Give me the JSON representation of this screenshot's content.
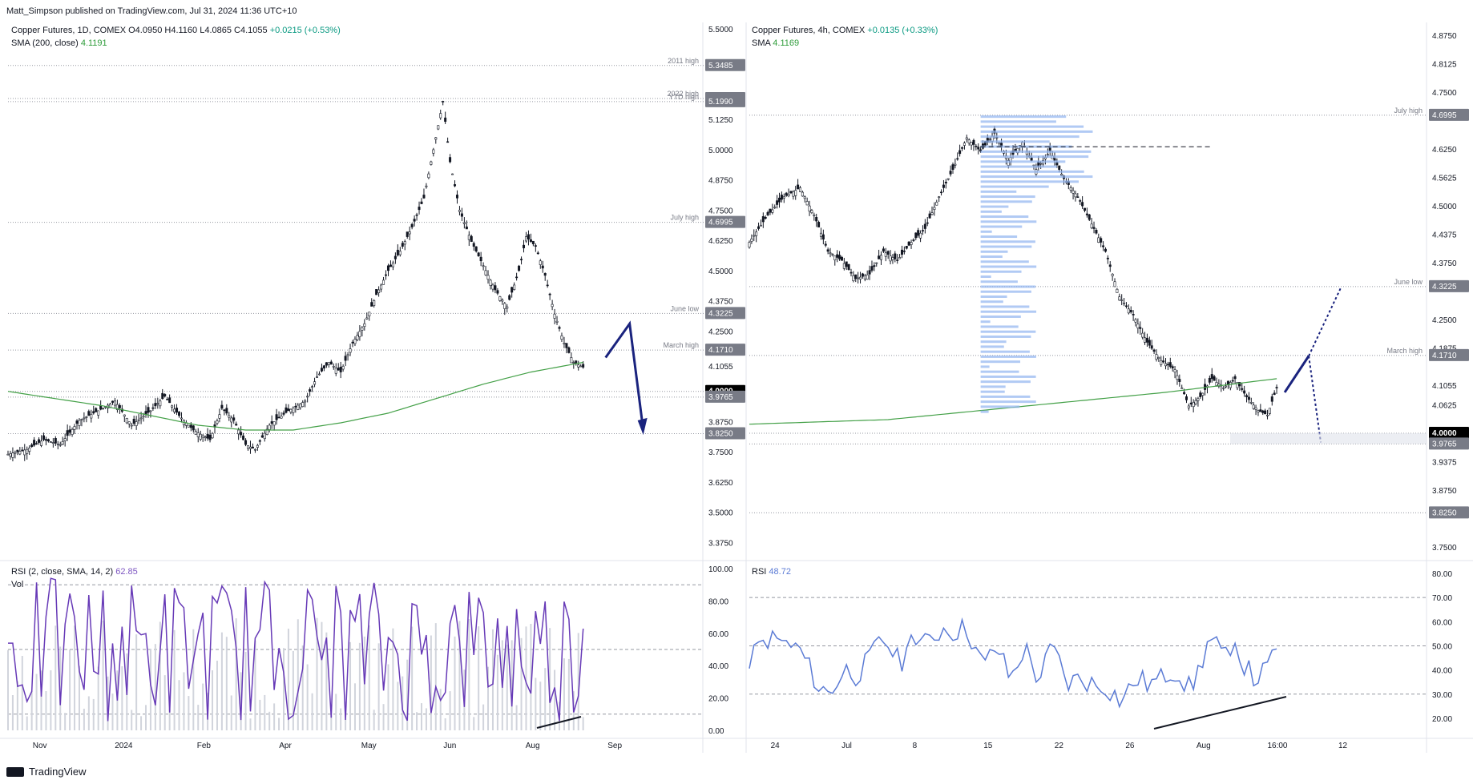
{
  "header": {
    "publisher": "Matt_Simpson published on TradingView.com, Jul 31, 2024 11:36 UTC+10"
  },
  "footer": {
    "brand": "TradingView"
  },
  "colors": {
    "candle": "#131722",
    "sma": "#43a047",
    "rsi_left": "#673ab7",
    "rsi_right": "#5b7bd5",
    "arrow": "#1a237e",
    "profile": "#90b4f0",
    "price_badge": "#787b86",
    "current_badge": "#000000"
  },
  "left": {
    "legend_title": "Copper Futures, 1D, COMEX",
    "legend_ohlc": "O4.0950  H4.1160  L4.0865  C4.1055",
    "legend_change": "+0.0215 (+0.53%)",
    "legend_sma_name": "SMA (200, close)",
    "legend_sma_value": "4.1191",
    "rsi_name": "RSI (2, close, SMA, 14, 2)",
    "rsi_value": "62.85",
    "vol_name": "Vol"
  },
  "right": {
    "legend_title": "Copper Futures, 4h, COMEX",
    "legend_change": "+0.0135 (+0.33%)",
    "legend_sma_name": "SMA",
    "legend_sma_value": "4.1169",
    "rsi_name": "RSI",
    "rsi_value": "48.72"
  },
  "chart_data": [
    {
      "type": "candlestick",
      "title": "Copper Futures, 1D, COMEX",
      "x_ticks": [
        "Nov",
        "2024",
        "Feb",
        "Apr",
        "May",
        "Jun",
        "Aug",
        "Sep"
      ],
      "y_ticks": [
        "5.5000",
        "5.1250",
        "5.0000",
        "4.8750",
        "4.7500",
        "4.6250",
        "4.5000",
        "4.3750",
        "4.2500",
        "4.1055",
        "3.8750",
        "3.7500",
        "3.6250",
        "3.5000",
        "3.3750"
      ],
      "ylim": [
        3.3,
        5.52
      ],
      "levels": [
        {
          "label": "2011 high",
          "value": "5.3485"
        },
        {
          "label": "2022 high",
          "value": "5.2120"
        },
        {
          "label": "YTD high",
          "value": "5.1990"
        },
        {
          "label": "July high",
          "value": "4.6995"
        },
        {
          "label": "June low",
          "value": "4.3225"
        },
        {
          "label": "March high",
          "value": "4.1710"
        },
        {
          "label": "",
          "value": "4.0000"
        },
        {
          "label": "",
          "value": "3.9765"
        },
        {
          "label": "",
          "value": "3.8250"
        }
      ],
      "last_price": "4.1055",
      "close_path": [
        [
          0,
          3.74
        ],
        [
          8,
          3.76
        ],
        [
          15,
          3.8
        ],
        [
          22,
          3.78
        ],
        [
          30,
          3.88
        ],
        [
          38,
          3.92
        ],
        [
          45,
          3.96
        ],
        [
          52,
          3.86
        ],
        [
          60,
          3.92
        ],
        [
          66,
          3.98
        ],
        [
          72,
          3.9
        ],
        [
          78,
          3.84
        ],
        [
          85,
          3.8
        ],
        [
          90,
          3.93
        ],
        [
          95,
          3.88
        ],
        [
          100,
          3.78
        ],
        [
          104,
          3.76
        ],
        [
          110,
          3.86
        ],
        [
          118,
          3.92
        ],
        [
          125,
          3.96
        ],
        [
          130,
          4.06
        ],
        [
          135,
          4.12
        ],
        [
          140,
          4.08
        ],
        [
          145,
          4.2
        ],
        [
          150,
          4.28
        ],
        [
          155,
          4.4
        ],
        [
          160,
          4.5
        ],
        [
          165,
          4.58
        ],
        [
          170,
          4.68
        ],
        [
          175,
          4.8
        ],
        [
          180,
          5.05
        ],
        [
          183,
          5.2
        ],
        [
          186,
          4.95
        ],
        [
          190,
          4.75
        ],
        [
          195,
          4.62
        ],
        [
          200,
          4.52
        ],
        [
          205,
          4.42
        ],
        [
          210,
          4.35
        ],
        [
          215,
          4.5
        ],
        [
          218,
          4.64
        ],
        [
          222,
          4.6
        ],
        [
          226,
          4.48
        ],
        [
          230,
          4.32
        ],
        [
          234,
          4.2
        ],
        [
          238,
          4.12
        ],
        [
          242,
          4.1
        ]
      ],
      "sma200_path": [
        [
          0,
          4.0
        ],
        [
          20,
          3.97
        ],
        [
          40,
          3.94
        ],
        [
          60,
          3.9
        ],
        [
          80,
          3.86
        ],
        [
          100,
          3.84
        ],
        [
          120,
          3.84
        ],
        [
          140,
          3.87
        ],
        [
          160,
          3.91
        ],
        [
          180,
          3.97
        ],
        [
          200,
          4.03
        ],
        [
          220,
          4.08
        ],
        [
          242,
          4.12
        ]
      ],
      "x_len": 290,
      "rsi": {
        "ylim": [
          0,
          100
        ],
        "ticks": [
          "100.00",
          "80.00",
          "60.00",
          "40.00",
          "20.00",
          "0.00"
        ],
        "levels": [
          90,
          50,
          10
        ],
        "last": 62.85
      },
      "annotation_arrows": [
        [
          [
            4.12
          ],
          [
            4.28
          ]
        ],
        [
          [
            4.28
          ],
          [
            3.83
          ]
        ]
      ]
    },
    {
      "type": "candlestick",
      "title": "Copper Futures, 4h, COMEX",
      "x_ticks": [
        "24",
        "Jul",
        "8",
        "15",
        "22",
        "26",
        "Aug",
        "16:00",
        "12"
      ],
      "y_ticks": [
        "4.8750",
        "4.8125",
        "4.7500",
        "4.6250",
        "4.5625",
        "4.5000",
        "4.4375",
        "4.3750",
        "4.2500",
        "4.1875",
        "4.1055",
        "4.0625",
        "3.9375",
        "3.8750",
        "3.7500"
      ],
      "ylim": [
        3.72,
        4.9
      ],
      "levels": [
        {
          "label": "July high",
          "value": "4.6995"
        },
        {
          "label": "June low",
          "value": "4.3225"
        },
        {
          "label": "March high",
          "value": "4.1710"
        },
        {
          "label": "",
          "value": "4.0000"
        },
        {
          "label": "",
          "value": "3.9765"
        },
        {
          "label": "",
          "value": "3.8250"
        }
      ],
      "last_price": "4.1055",
      "close_path": [
        [
          0,
          4.42
        ],
        [
          8,
          4.48
        ],
        [
          15,
          4.52
        ],
        [
          22,
          4.54
        ],
        [
          28,
          4.48
        ],
        [
          34,
          4.4
        ],
        [
          40,
          4.38
        ],
        [
          46,
          4.34
        ],
        [
          52,
          4.35
        ],
        [
          58,
          4.4
        ],
        [
          64,
          4.38
        ],
        [
          70,
          4.42
        ],
        [
          76,
          4.45
        ],
        [
          82,
          4.52
        ],
        [
          88,
          4.58
        ],
        [
          94,
          4.65
        ],
        [
          100,
          4.62
        ],
        [
          106,
          4.66
        ],
        [
          112,
          4.6
        ],
        [
          118,
          4.64
        ],
        [
          124,
          4.58
        ],
        [
          130,
          4.62
        ],
        [
          136,
          4.56
        ],
        [
          142,
          4.52
        ],
        [
          148,
          4.46
        ],
        [
          154,
          4.4
        ],
        [
          160,
          4.3
        ],
        [
          166,
          4.26
        ],
        [
          172,
          4.2
        ],
        [
          178,
          4.16
        ],
        [
          184,
          4.14
        ],
        [
          190,
          4.06
        ],
        [
          195,
          4.08
        ],
        [
          200,
          4.12
        ],
        [
          205,
          4.1
        ],
        [
          210,
          4.12
        ],
        [
          215,
          4.08
        ],
        [
          220,
          4.05
        ],
        [
          224,
          4.04
        ],
        [
          228,
          4.1
        ]
      ],
      "sma_path": [
        [
          0,
          4.02
        ],
        [
          60,
          4.03
        ],
        [
          120,
          4.06
        ],
        [
          180,
          4.09
        ],
        [
          228,
          4.12
        ]
      ],
      "x_len": 290,
      "rsi": {
        "ylim": [
          15,
          82
        ],
        "ticks": [
          "80.00",
          "70.00",
          "60.00",
          "50.00",
          "40.00",
          "30.00",
          "20.00"
        ],
        "levels": [
          70,
          50,
          30
        ],
        "last": 48.72
      }
    }
  ]
}
